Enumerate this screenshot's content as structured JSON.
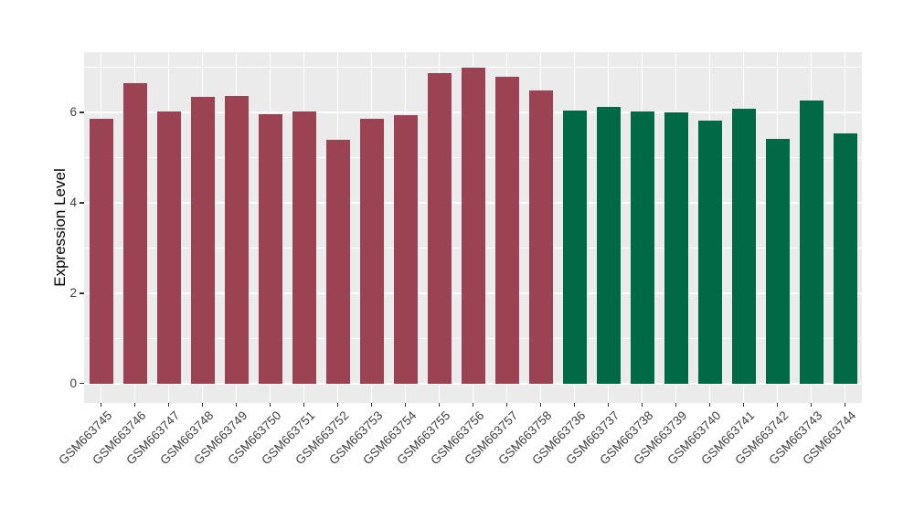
{
  "chart_data": {
    "type": "bar",
    "title": "",
    "xlabel": "",
    "ylabel": "Expression Level",
    "yticks": [
      0,
      2,
      4,
      6
    ],
    "minor_gridlines": [
      1,
      3,
      5,
      7
    ],
    "ylim": [
      -0.43,
      7.34
    ],
    "grid": true,
    "legend": "none",
    "categories": [
      "GSM663745",
      "GSM663746",
      "GSM663747",
      "GSM663748",
      "GSM663749",
      "GSM663750",
      "GSM663751",
      "GSM663752",
      "GSM663753",
      "GSM663754",
      "GSM663755",
      "GSM663756",
      "GSM663757",
      "GSM663758",
      "GSM663736",
      "GSM663737",
      "GSM663738",
      "GSM663739",
      "GSM663740",
      "GSM663741",
      "GSM663742",
      "GSM663743",
      "GSM663744"
    ],
    "values": [
      5.87,
      6.65,
      6.03,
      6.34,
      6.36,
      5.96,
      6.03,
      5.4,
      5.86,
      5.95,
      6.87,
      7.0,
      6.8,
      6.49,
      6.04,
      6.13,
      6.02,
      6.0,
      5.82,
      6.09,
      5.41,
      6.27,
      5.53
    ],
    "bar_colors": [
      "#9B4352",
      "#9B4352",
      "#9B4352",
      "#9B4352",
      "#9B4352",
      "#9B4352",
      "#9B4352",
      "#9B4352",
      "#9B4352",
      "#9B4352",
      "#9B4352",
      "#9B4352",
      "#9B4352",
      "#9B4352",
      "#006946",
      "#006946",
      "#006946",
      "#006946",
      "#006946",
      "#006946",
      "#006946",
      "#006946",
      "#006946"
    ],
    "panel_background": "#EBEBEB",
    "gridline_color": "#FFFFFF",
    "tick_mark_color": "#333333",
    "axis_text_color": "#404040"
  }
}
